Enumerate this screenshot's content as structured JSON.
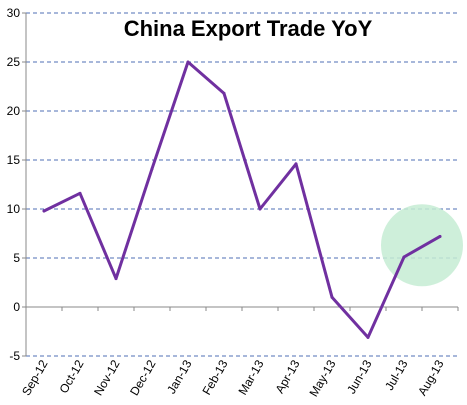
{
  "chart_data": {
    "type": "line",
    "title": "China Export Trade YoY",
    "xlabel": "",
    "ylabel": "",
    "categories": [
      "Sep-12",
      "Oct-12",
      "Nov-12",
      "Dec-12",
      "Jan-13",
      "Feb-13",
      "Mar-13",
      "Apr-13",
      "May-13",
      "Jun-13",
      "Jul-13",
      "Aug-13"
    ],
    "series": [
      {
        "values": [
          9.8,
          11.6,
          2.9,
          14.1,
          25.0,
          21.8,
          10.0,
          14.6,
          1.0,
          -3.1,
          5.1,
          7.2
        ],
        "color": "#7030a0"
      }
    ],
    "ylim": [
      -5,
      30
    ],
    "yticks": [
      "-5",
      "0",
      "5",
      "10",
      "15",
      "20",
      "25",
      "30"
    ],
    "grid": "horizontal dashed",
    "gridColor": "#4f6fb4",
    "highlight_circle": {
      "category": "Jul-13 to Aug-13",
      "value": 6.3,
      "color": "#c6ecd3"
    }
  }
}
